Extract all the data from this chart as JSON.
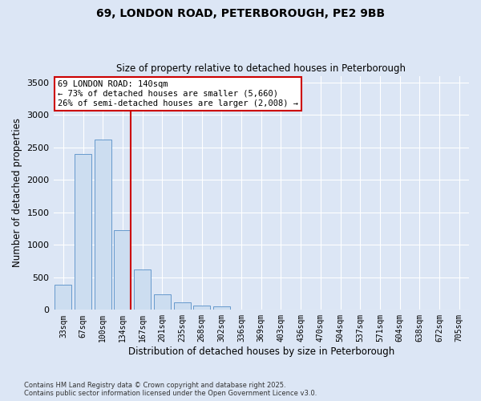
{
  "title_line1": "69, LONDON ROAD, PETERBOROUGH, PE2 9BB",
  "title_line2": "Size of property relative to detached houses in Peterborough",
  "xlabel": "Distribution of detached houses by size in Peterborough",
  "ylabel": "Number of detached properties",
  "categories": [
    "33sqm",
    "67sqm",
    "100sqm",
    "134sqm",
    "167sqm",
    "201sqm",
    "235sqm",
    "268sqm",
    "302sqm",
    "336sqm",
    "369sqm",
    "403sqm",
    "436sqm",
    "470sqm",
    "504sqm",
    "537sqm",
    "571sqm",
    "604sqm",
    "638sqm",
    "672sqm",
    "705sqm"
  ],
  "values": [
    390,
    2400,
    2620,
    1230,
    620,
    240,
    110,
    70,
    50,
    0,
    0,
    0,
    0,
    0,
    0,
    0,
    0,
    0,
    0,
    0,
    0
  ],
  "bar_color": "#ccddf0",
  "bar_edge_color": "#6699cc",
  "vline_color": "#cc0000",
  "annotation_text": "69 LONDON ROAD: 140sqm\n← 73% of detached houses are smaller (5,660)\n26% of semi-detached houses are larger (2,008) →",
  "annotation_box_color": "#ffffff",
  "annotation_box_edge": "#cc0000",
  "ylim": [
    0,
    3600
  ],
  "yticks": [
    0,
    500,
    1000,
    1500,
    2000,
    2500,
    3000,
    3500
  ],
  "footer_line1": "Contains HM Land Registry data © Crown copyright and database right 2025.",
  "footer_line2": "Contains public sector information licensed under the Open Government Licence v3.0.",
  "background_color": "#dce6f5",
  "plot_bg_color": "#dce6f5",
  "grid_color": "#ffffff"
}
